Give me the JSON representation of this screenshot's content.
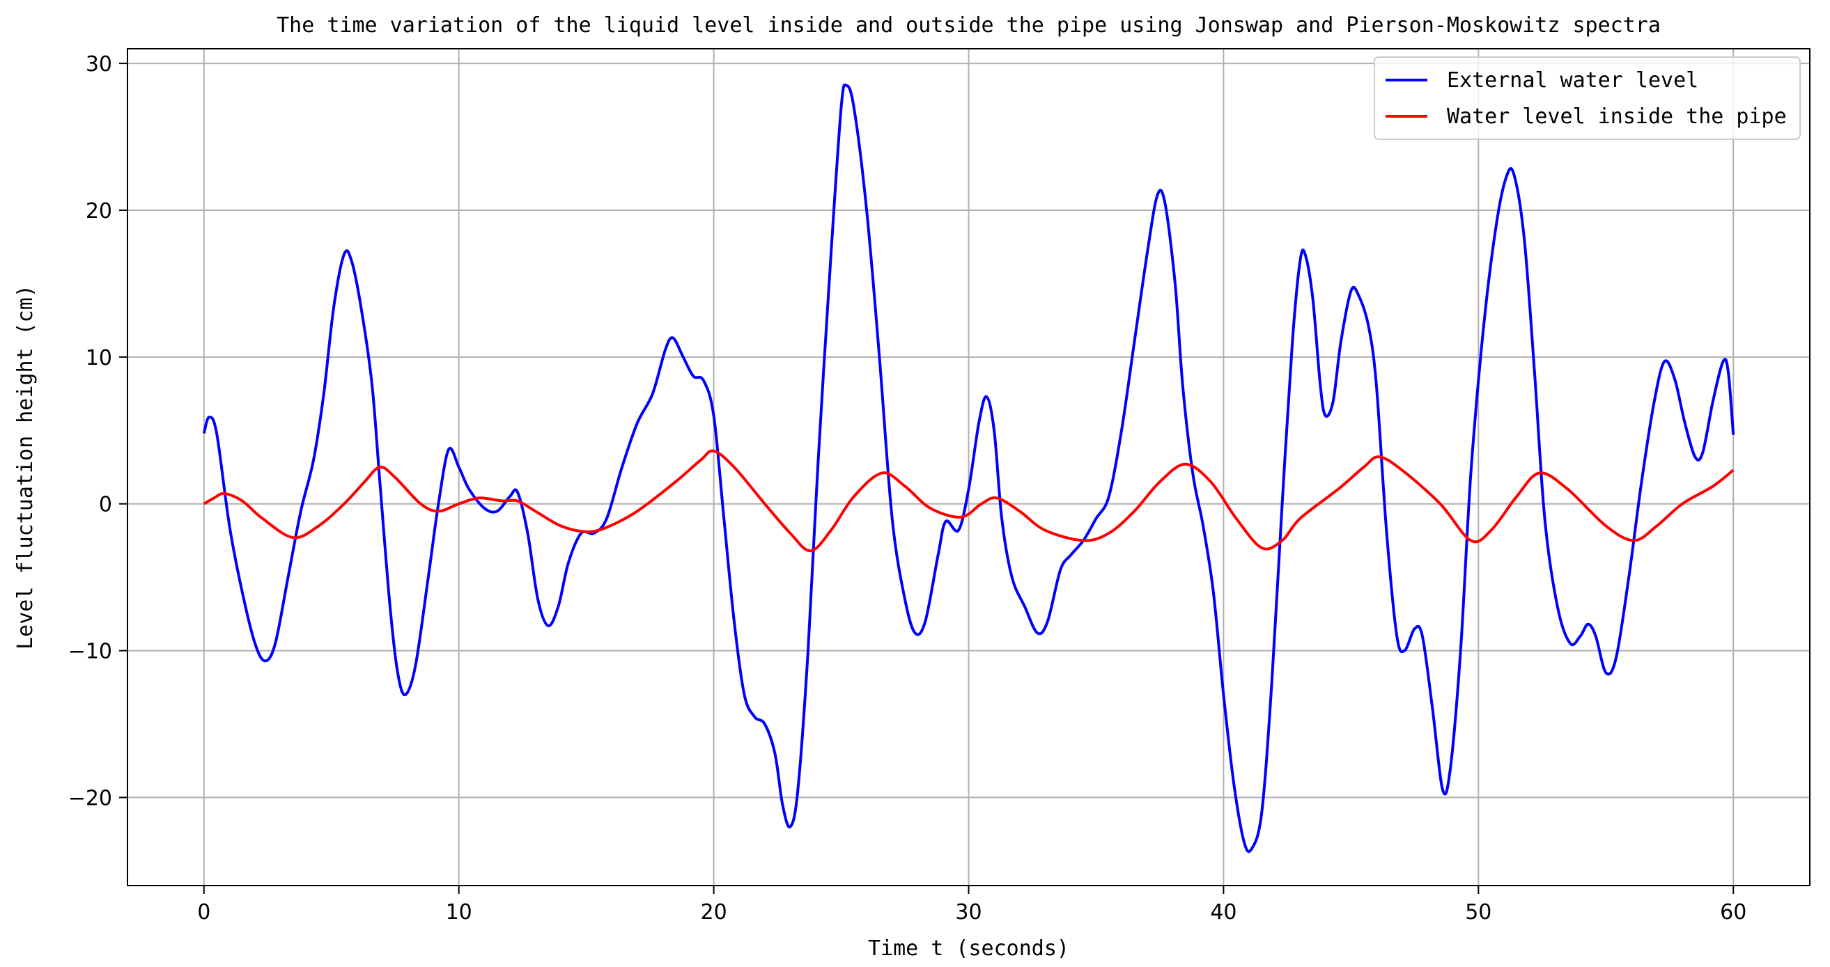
{
  "chart_data": {
    "type": "line",
    "title": "The time variation of the liquid level inside and outside the pipe using Jonswap and Pierson-Moskowitz spectra",
    "xlabel": "Time t (seconds)",
    "ylabel": "Level fluctuation height (cm)",
    "xlim": [
      -3,
      63
    ],
    "ylim": [
      -26,
      31
    ],
    "xticks": [
      0,
      10,
      20,
      30,
      40,
      50,
      60
    ],
    "yticks": [
      -20,
      -10,
      0,
      10,
      20,
      30
    ],
    "xtick_labels": [
      "0",
      "10",
      "20",
      "30",
      "40",
      "50",
      "60"
    ],
    "ytick_labels": [
      "−20",
      "−10",
      "0",
      "10",
      "20",
      "30"
    ],
    "grid": true,
    "legend_position": "top-right",
    "series": [
      {
        "name": "External water level",
        "color": "#0000ff",
        "points": [
          [
            0,
            4.8
          ],
          [
            0.2,
            5.9
          ],
          [
            0.5,
            4.8
          ],
          [
            1,
            -1.5
          ],
          [
            1.5,
            -6
          ],
          [
            2,
            -9.5
          ],
          [
            2.4,
            -10.7
          ],
          [
            2.8,
            -9.5
          ],
          [
            3.3,
            -5
          ],
          [
            3.8,
            -0.5
          ],
          [
            4.3,
            3
          ],
          [
            4.7,
            7.5
          ],
          [
            5.1,
            13.5
          ],
          [
            5.5,
            17
          ],
          [
            5.8,
            16.5
          ],
          [
            6.2,
            13
          ],
          [
            6.6,
            8
          ],
          [
            6.9,
            1.5
          ],
          [
            7.3,
            -7
          ],
          [
            7.6,
            -11.5
          ],
          [
            7.9,
            -13
          ],
          [
            8.3,
            -11
          ],
          [
            8.8,
            -5
          ],
          [
            9.2,
            0
          ],
          [
            9.6,
            3.7
          ],
          [
            10,
            2.5
          ],
          [
            10.4,
            1
          ],
          [
            11,
            -0.3
          ],
          [
            11.5,
            -0.5
          ],
          [
            12,
            0.5
          ],
          [
            12.3,
            0.8
          ],
          [
            12.7,
            -2
          ],
          [
            13.1,
            -6.5
          ],
          [
            13.5,
            -8.3
          ],
          [
            13.9,
            -7
          ],
          [
            14.3,
            -4
          ],
          [
            14.8,
            -2
          ],
          [
            15.3,
            -2
          ],
          [
            15.8,
            -1
          ],
          [
            16.4,
            2.5
          ],
          [
            17,
            5.5
          ],
          [
            17.6,
            7.5
          ],
          [
            18.1,
            10.5
          ],
          [
            18.4,
            11.3
          ],
          [
            18.8,
            10
          ],
          [
            19.2,
            8.7
          ],
          [
            19.6,
            8.4
          ],
          [
            20.0,
            6
          ],
          [
            20.4,
            -1
          ],
          [
            20.8,
            -8
          ],
          [
            21.2,
            -13
          ],
          [
            21.6,
            -14.5
          ],
          [
            22,
            -15
          ],
          [
            22.4,
            -17
          ],
          [
            22.7,
            -20.5
          ],
          [
            23,
            -22
          ],
          [
            23.3,
            -19.5
          ],
          [
            23.7,
            -10
          ],
          [
            24.1,
            3
          ],
          [
            24.6,
            17
          ],
          [
            25,
            27
          ],
          [
            25.2,
            28.5
          ],
          [
            25.5,
            27
          ],
          [
            26,
            20
          ],
          [
            26.5,
            10
          ],
          [
            27,
            -1
          ],
          [
            27.5,
            -6.5
          ],
          [
            27.9,
            -8.8
          ],
          [
            28.3,
            -8
          ],
          [
            28.8,
            -3.5
          ],
          [
            29.1,
            -1.2
          ],
          [
            29.6,
            -1.8
          ],
          [
            30,
            1
          ],
          [
            30.4,
            5.5
          ],
          [
            30.7,
            7.3
          ],
          [
            31,
            5
          ],
          [
            31.3,
            -1
          ],
          [
            31.7,
            -5
          ],
          [
            32.2,
            -7
          ],
          [
            32.7,
            -8.8
          ],
          [
            33.1,
            -8
          ],
          [
            33.6,
            -4.5
          ],
          [
            34,
            -3.5
          ],
          [
            34.5,
            -2.5
          ],
          [
            35,
            -1
          ],
          [
            35.5,
            0.5
          ],
          [
            36,
            5
          ],
          [
            36.5,
            11
          ],
          [
            37,
            17
          ],
          [
            37.4,
            21
          ],
          [
            37.7,
            20.5
          ],
          [
            38.1,
            15
          ],
          [
            38.4,
            8
          ],
          [
            38.8,
            2
          ],
          [
            39.2,
            -1.5
          ],
          [
            39.6,
            -6
          ],
          [
            40,
            -13
          ],
          [
            40.4,
            -19
          ],
          [
            40.8,
            -23
          ],
          [
            41.1,
            -23.5
          ],
          [
            41.5,
            -21
          ],
          [
            41.9,
            -12
          ],
          [
            42.3,
            0
          ],
          [
            42.7,
            11
          ],
          [
            43,
            16.5
          ],
          [
            43.2,
            17
          ],
          [
            43.5,
            14
          ],
          [
            43.8,
            8
          ],
          [
            44,
            6
          ],
          [
            44.3,
            7
          ],
          [
            44.6,
            11
          ],
          [
            45,
            14.5
          ],
          [
            45.3,
            14.2
          ],
          [
            45.7,
            12
          ],
          [
            46,
            8
          ],
          [
            46.4,
            -2
          ],
          [
            46.8,
            -9
          ],
          [
            47.1,
            -10
          ],
          [
            47.5,
            -8.5
          ],
          [
            47.8,
            -9
          ],
          [
            48.2,
            -14
          ],
          [
            48.6,
            -19.5
          ],
          [
            48.9,
            -18
          ],
          [
            49.3,
            -10
          ],
          [
            49.7,
            2
          ],
          [
            50.2,
            12
          ],
          [
            50.7,
            19
          ],
          [
            51.1,
            22.3
          ],
          [
            51.4,
            22.4
          ],
          [
            51.8,
            18
          ],
          [
            52.2,
            9
          ],
          [
            52.6,
            -1
          ],
          [
            53.1,
            -7
          ],
          [
            53.6,
            -9.5
          ],
          [
            54,
            -9
          ],
          [
            54.3,
            -8.2
          ],
          [
            54.6,
            -9
          ],
          [
            55,
            -11.5
          ],
          [
            55.4,
            -10.5
          ],
          [
            55.9,
            -5
          ],
          [
            56.4,
            1.5
          ],
          [
            56.9,
            7
          ],
          [
            57.3,
            9.7
          ],
          [
            57.7,
            8.5
          ],
          [
            58.1,
            5.5
          ],
          [
            58.5,
            3.2
          ],
          [
            58.8,
            3.5
          ],
          [
            59.2,
            7
          ],
          [
            59.6,
            9.7
          ],
          [
            59.8,
            9
          ],
          [
            60,
            4.7
          ]
        ]
      },
      {
        "name": "Water level inside the pipe",
        "color": "#ff0000",
        "points": [
          [
            0,
            0
          ],
          [
            0.4,
            0.4
          ],
          [
            0.8,
            0.7
          ],
          [
            1.5,
            0.2
          ],
          [
            2.3,
            -1
          ],
          [
            3.5,
            -2.3
          ],
          [
            4.5,
            -1.5
          ],
          [
            5.5,
            0
          ],
          [
            6.3,
            1.5
          ],
          [
            6.9,
            2.5
          ],
          [
            7.5,
            1.8
          ],
          [
            8.5,
            0
          ],
          [
            9.2,
            -0.5
          ],
          [
            10,
            0
          ],
          [
            10.8,
            0.4
          ],
          [
            11.7,
            0.2
          ],
          [
            12.3,
            0.2
          ],
          [
            13,
            -0.5
          ],
          [
            14,
            -1.5
          ],
          [
            15,
            -1.9
          ],
          [
            15.8,
            -1.6
          ],
          [
            17,
            -0.5
          ],
          [
            18.5,
            1.5
          ],
          [
            19.5,
            3
          ],
          [
            20,
            3.6
          ],
          [
            20.8,
            2.5
          ],
          [
            22,
            0
          ],
          [
            23,
            -2
          ],
          [
            23.8,
            -3.2
          ],
          [
            24.6,
            -1.8
          ],
          [
            25.5,
            0.5
          ],
          [
            26.6,
            2.1
          ],
          [
            27.5,
            1.2
          ],
          [
            28.5,
            -0.3
          ],
          [
            29.7,
            -0.9
          ],
          [
            30.5,
            0
          ],
          [
            31.1,
            0.4
          ],
          [
            32,
            -0.5
          ],
          [
            33,
            -1.8
          ],
          [
            34.5,
            -2.5
          ],
          [
            35.5,
            -2
          ],
          [
            36.5,
            -0.5
          ],
          [
            37.5,
            1.5
          ],
          [
            38.5,
            2.7
          ],
          [
            39.5,
            1.5
          ],
          [
            40.5,
            -1
          ],
          [
            41.5,
            -3
          ],
          [
            42.3,
            -2.5
          ],
          [
            43,
            -1
          ],
          [
            44.5,
            1
          ],
          [
            45.5,
            2.5
          ],
          [
            46.1,
            3.2
          ],
          [
            47,
            2.3
          ],
          [
            48.5,
            0
          ],
          [
            49.7,
            -2.5
          ],
          [
            50.5,
            -1.8
          ],
          [
            51.5,
            0.5
          ],
          [
            52.4,
            2.1
          ],
          [
            53.5,
            1
          ],
          [
            55,
            -1.5
          ],
          [
            56.1,
            -2.5
          ],
          [
            57,
            -1.5
          ],
          [
            58,
            0
          ],
          [
            59.2,
            1.2
          ],
          [
            60,
            2.3
          ]
        ]
      }
    ]
  }
}
